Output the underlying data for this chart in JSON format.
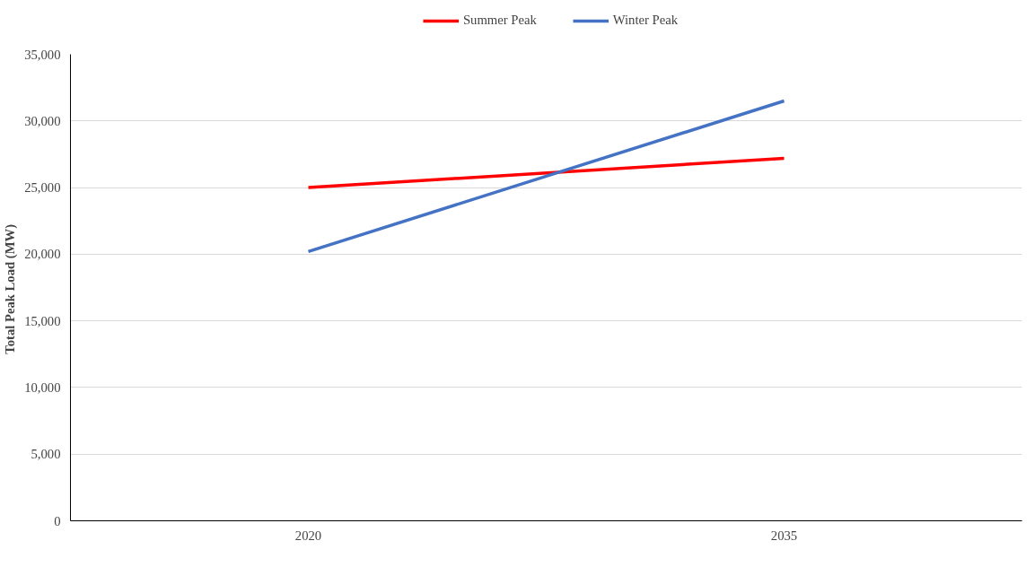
{
  "chart_data": {
    "type": "line",
    "ylabel": "Total  Peak Load (MW)",
    "categories": [
      "2020",
      "2035"
    ],
    "series": [
      {
        "name": "Summer Peak",
        "color": "#ff0000",
        "values": [
          25000,
          27200
        ]
      },
      {
        "name": "Winter Peak",
        "color": "#4472c4",
        "values": [
          20200,
          31500
        ]
      }
    ],
    "ylim": [
      0,
      35000
    ],
    "yticks": [
      {
        "value": 0,
        "label": "0"
      },
      {
        "value": 5000,
        "label": "5,000"
      },
      {
        "value": 10000,
        "label": "10,000"
      },
      {
        "value": 15000,
        "label": "15,000"
      },
      {
        "value": 20000,
        "label": "20,000"
      },
      {
        "value": 25000,
        "label": "25,000"
      },
      {
        "value": 30000,
        "label": "30,000"
      },
      {
        "value": 35000,
        "label": "35,000"
      }
    ],
    "grid": "y",
    "legend": "top",
    "marker": "none",
    "line_style": "solid"
  }
}
